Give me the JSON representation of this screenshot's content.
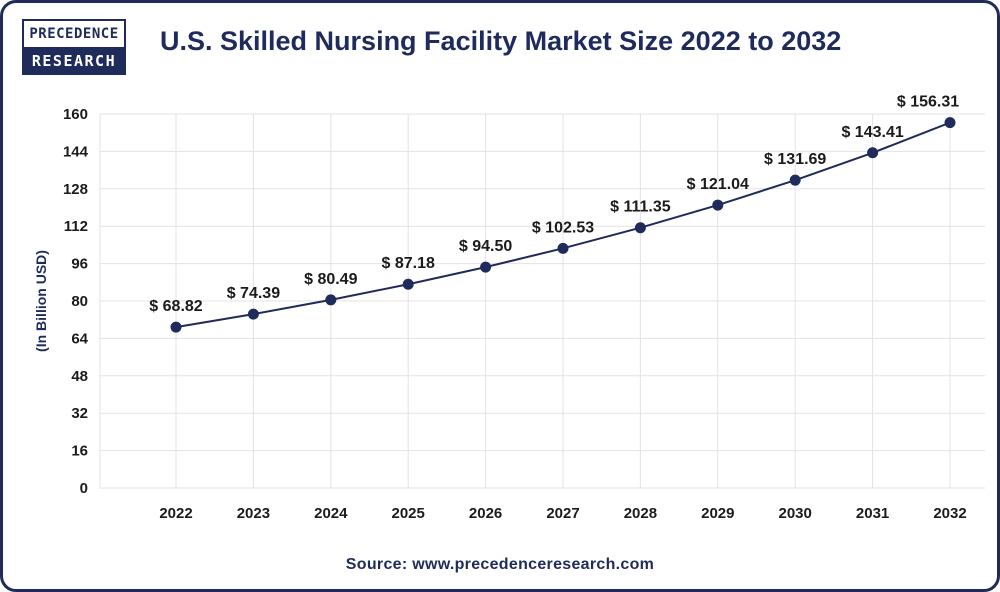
{
  "brand": {
    "logo_top": "PRECEDENCE",
    "logo_bottom": "RESEARCH"
  },
  "source": "Source: www.precedenceresearch.com",
  "colors": {
    "navy": "#1f2b5b",
    "grid": "#e3e3e3",
    "text": "#1b1b1b"
  },
  "chart_data": {
    "type": "line",
    "title": "U.S. Skilled Nursing Facility Market Size 2022 to 2032",
    "xlabel": "",
    "ylabel": "(In Billion USD)",
    "x": [
      "2022",
      "2023",
      "2024",
      "2025",
      "2026",
      "2027",
      "2028",
      "2029",
      "2030",
      "2031",
      "2032"
    ],
    "series": [
      {
        "values": [
          68.82,
          74.39,
          80.49,
          87.18,
          94.5,
          102.53,
          111.35,
          121.04,
          131.69,
          143.41,
          156.31
        ]
      }
    ],
    "data_labels": [
      "$ 68.82",
      "$ 74.39",
      "$ 80.49",
      "$ 87.18",
      "$ 94.50",
      "$ 102.53",
      "$ 111.35",
      "$ 121.04",
      "$ 131.69",
      "$ 143.41",
      "$ 156.31"
    ],
    "ylim": [
      0,
      160
    ],
    "yticks": [
      0,
      16,
      32,
      48,
      64,
      80,
      96,
      112,
      128,
      144,
      160
    ],
    "grid": true,
    "legend": "none"
  }
}
